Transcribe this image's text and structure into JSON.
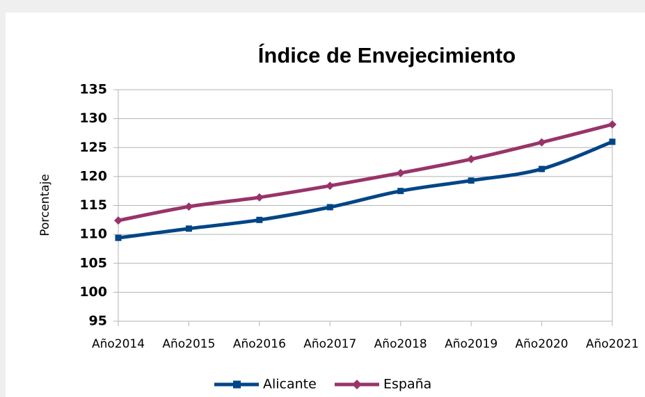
{
  "chart_data": {
    "type": "line",
    "title": "Índice de Envejecimiento",
    "y_label": "Porcentaje",
    "categories": [
      "Año2014",
      "Año2015",
      "Año2016",
      "Año2017",
      "Año2018",
      "Año2019",
      "Año2020",
      "Año2021"
    ],
    "series": [
      {
        "name": "Alicante",
        "color": "#004586",
        "values": [
          109.4,
          111.0,
          112.5,
          114.7,
          117.5,
          119.3,
          121.3,
          126.0
        ]
      },
      {
        "name": "España",
        "color": "#983469",
        "values": [
          112.4,
          114.8,
          116.4,
          118.4,
          120.6,
          123.0,
          125.9,
          129.0
        ]
      }
    ],
    "ylim": [
      95,
      135
    ],
    "yticks": [
      95,
      100,
      105,
      110,
      115,
      120,
      125,
      130,
      135
    ],
    "grid": true,
    "legend": "bottom"
  }
}
